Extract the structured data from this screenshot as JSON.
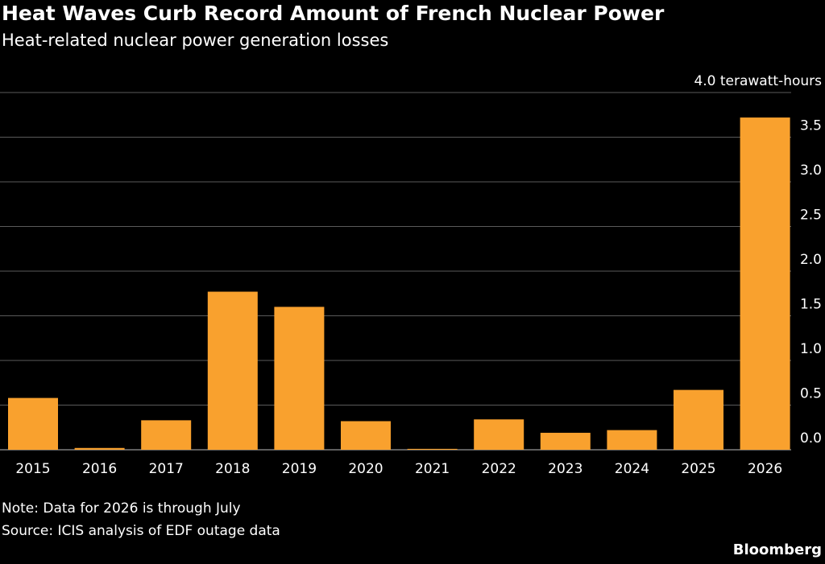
{
  "header": {
    "title": "Heat Waves Curb Record Amount of French Nuclear Power",
    "subtitle": "Heat-related nuclear power generation losses"
  },
  "footer": {
    "note": "Note: Data for 2026 is through July",
    "source": "Source: ICIS analysis of EDF outage data",
    "brand": "Bloomberg"
  },
  "colors": {
    "bar": "#F9A12E",
    "grid": "#5a5a5a",
    "background": "#000000"
  },
  "chart_data": {
    "type": "bar",
    "title": "Heat Waves Curb Record Amount of French Nuclear Power",
    "subtitle": "Heat-related nuclear power generation losses",
    "unit_label": "4.0 terawatt-hours",
    "categories": [
      "2015",
      "2016",
      "2017",
      "2018",
      "2019",
      "2020",
      "2021",
      "2022",
      "2023",
      "2024",
      "2025",
      "2026"
    ],
    "values": [
      0.58,
      0.02,
      0.33,
      1.77,
      1.6,
      0.32,
      0.01,
      0.34,
      0.19,
      0.22,
      0.67,
      3.72
    ],
    "ylim": [
      0,
      4.0
    ],
    "yticks": [
      "0.0",
      "0.5",
      "1.0",
      "1.5",
      "2.0",
      "2.5",
      "3.0",
      "3.5"
    ],
    "y_axis_position": "right",
    "grid": true,
    "legend": "none"
  }
}
